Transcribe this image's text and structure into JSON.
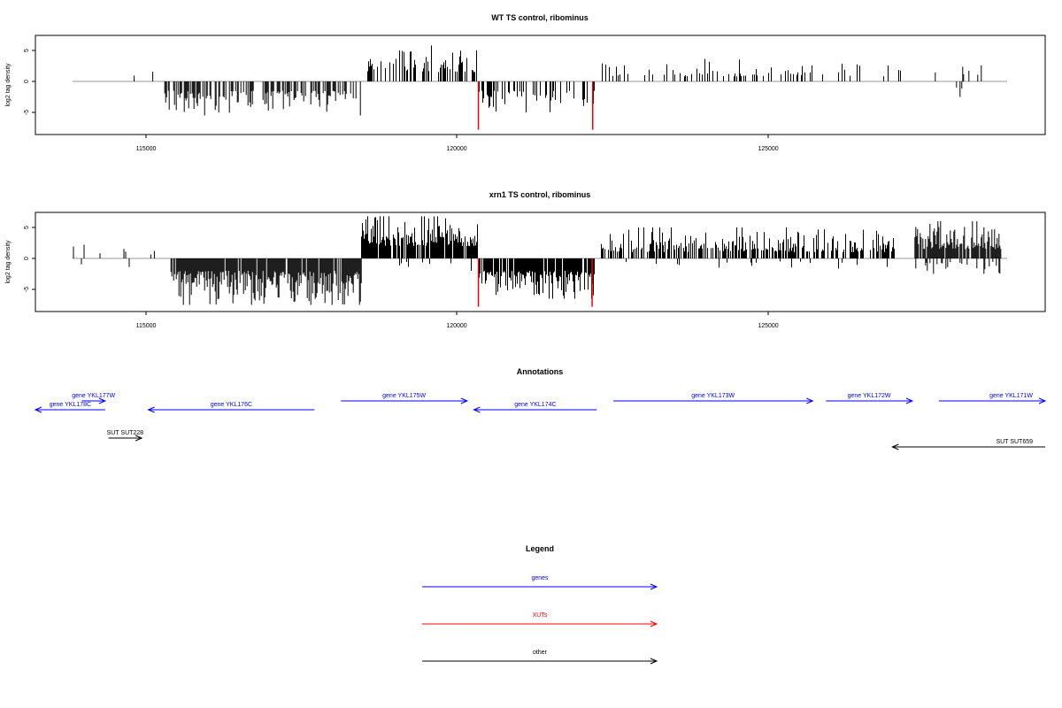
{
  "chart_data": [
    {
      "type": "bar",
      "title": "WT TS control, ribominus",
      "ylabel": "log2 tag density",
      "xlabel": "",
      "xlim": [
        113800,
        129000
      ],
      "ylim": [
        -8,
        7.5
      ],
      "xticks": [
        "115000",
        "120000",
        "125000"
      ],
      "yticks": [
        "5",
        "0",
        "-5"
      ],
      "highlight_color": "#ff0000",
      "bar_color": "#000000",
      "highlights": [
        {
          "x": 120400,
          "y": -7.8
        },
        {
          "x": 122260,
          "y": -7.8
        }
      ],
      "regions": [
        {
          "from": 113800,
          "to": 114500,
          "sign": -1,
          "min": 0.8,
          "max": 3,
          "density": 0.02
        },
        {
          "from": 114600,
          "to": 115300,
          "sign": 1,
          "min": 0.8,
          "max": 2.2,
          "density": 0.015
        },
        {
          "from": 115300,
          "to": 118500,
          "sign": -1,
          "min": 1.5,
          "max": 5.5,
          "density": 0.55
        },
        {
          "from": 118600,
          "to": 120400,
          "sign": 1,
          "min": 1.5,
          "max": 5.8,
          "density": 0.45
        },
        {
          "from": 120400,
          "to": 122300,
          "sign": -1,
          "min": 1.5,
          "max": 5,
          "density": 0.4
        },
        {
          "from": 122400,
          "to": 127300,
          "sign": 1,
          "min": 0.8,
          "max": 3.8,
          "density": 0.22
        },
        {
          "from": 127500,
          "to": 128900,
          "sign": 1,
          "min": 0.8,
          "max": 2.6,
          "density": 0.05
        },
        {
          "from": 127500,
          "to": 128900,
          "sign": -1,
          "min": 0.8,
          "max": 2.5,
          "density": 0.02
        }
      ]
    },
    {
      "type": "bar",
      "title": "xrn1 TS control, ribominus",
      "ylabel": "log2 tag density",
      "xlabel": "",
      "xlim": [
        113800,
        129000
      ],
      "ylim": [
        -8,
        7.5
      ],
      "xticks": [
        "115000",
        "120000",
        "125000"
      ],
      "yticks": [
        "5",
        "0",
        "-5"
      ],
      "highlight_color": "#ff0000",
      "bar_color": "#000000",
      "highlights": [
        {
          "x": 120400,
          "y": -7.8
        },
        {
          "x": 122250,
          "y": -7.8
        }
      ],
      "regions": [
        {
          "from": 113800,
          "to": 114800,
          "sign": 1,
          "min": 0.8,
          "max": 2.4,
          "density": 0.04
        },
        {
          "from": 113800,
          "to": 114800,
          "sign": -1,
          "min": 0.8,
          "max": 3.5,
          "density": 0.04
        },
        {
          "from": 115000,
          "to": 115400,
          "sign": 1,
          "min": 0.6,
          "max": 2.3,
          "density": 0.05
        },
        {
          "from": 115400,
          "to": 118500,
          "sign": -1,
          "min": 2,
          "max": 7.5,
          "density": 0.95
        },
        {
          "from": 118500,
          "to": 120400,
          "sign": 1,
          "min": 2,
          "max": 6.8,
          "density": 0.9
        },
        {
          "from": 118500,
          "to": 120400,
          "sign": -1,
          "min": 0.5,
          "max": 2,
          "density": 0.08
        },
        {
          "from": 120400,
          "to": 122300,
          "sign": -1,
          "min": 2,
          "max": 6.5,
          "density": 0.9
        },
        {
          "from": 122400,
          "to": 127200,
          "sign": 1,
          "min": 1,
          "max": 5,
          "density": 0.6
        },
        {
          "from": 122400,
          "to": 127200,
          "sign": -1,
          "min": 0.5,
          "max": 1.8,
          "density": 0.04
        },
        {
          "from": 127500,
          "to": 128900,
          "sign": 1,
          "min": 1.5,
          "max": 6,
          "density": 0.9
        },
        {
          "from": 127500,
          "to": 128900,
          "sign": -1,
          "min": 0.5,
          "max": 2.5,
          "density": 0.2
        }
      ]
    }
  ],
  "annotations": {
    "title": "Annotations",
    "colors": {
      "gene": "#0000ff",
      "xut": "#ff0000",
      "other": "#000000"
    },
    "features": [
      {
        "label": "gene YKL177W",
        "from": 114500,
        "to": 114850,
        "strand": "+",
        "type": "gene",
        "row": 0
      },
      {
        "label": "gene YKL178C",
        "from": 113800,
        "to": 114850,
        "strand": "-",
        "type": "gene",
        "row": 1
      },
      {
        "label": "gene YKL176C",
        "from": 115500,
        "to": 118000,
        "strand": "-",
        "type": "gene",
        "row": 1
      },
      {
        "label": "gene YKL175W",
        "from": 118400,
        "to": 120300,
        "strand": "+",
        "type": "gene",
        "row": 0
      },
      {
        "label": "gene YKL174C",
        "from": 120400,
        "to": 122250,
        "strand": "-",
        "type": "gene",
        "row": 1
      },
      {
        "label": "gene YKL173W",
        "from": 122500,
        "to": 125500,
        "strand": "+",
        "type": "gene",
        "row": 0
      },
      {
        "label": "gene YKL172W",
        "from": 125700,
        "to": 127000,
        "strand": "+",
        "type": "gene",
        "row": 0
      },
      {
        "label": "gene YKL171W",
        "from": 127400,
        "to": 129000,
        "strand": "+",
        "type": "gene",
        "row": 0
      },
      {
        "label": "SUT SUT228",
        "from": 114900,
        "to": 115400,
        "strand": "+",
        "type": "other",
        "row": 2
      },
      {
        "label": "SUT SUT659",
        "from": 126700,
        "to": 129000,
        "strand": "-",
        "type": "other",
        "row": 3
      }
    ]
  },
  "legend": {
    "title": "Legend",
    "items": [
      {
        "label": "genes",
        "color": "#0000ff"
      },
      {
        "label": "XUTs",
        "color": "#ff0000"
      },
      {
        "label": "other",
        "color": "#000000"
      }
    ]
  }
}
